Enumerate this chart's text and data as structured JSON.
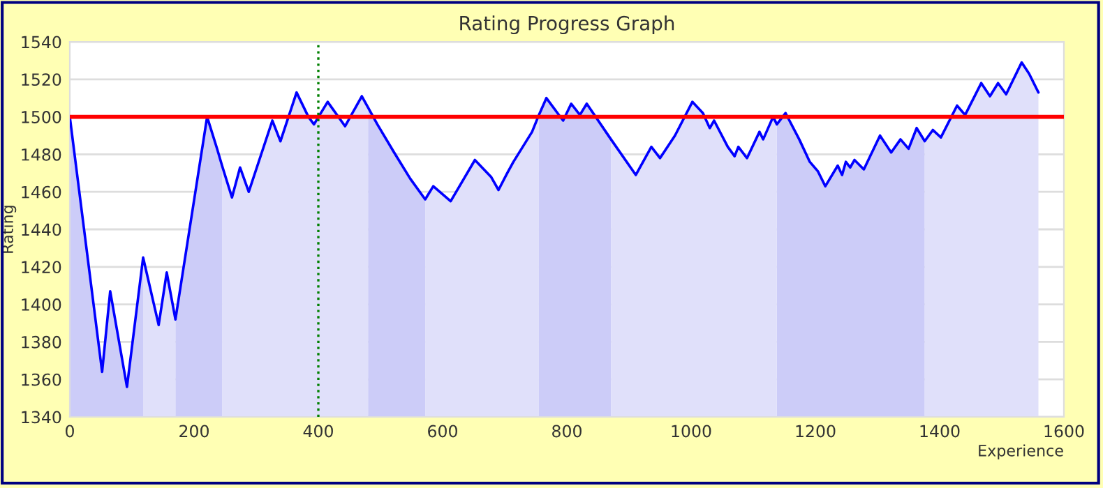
{
  "chart_data": {
    "type": "line",
    "title": "Rating Progress Graph",
    "xlabel": "Experience",
    "ylabel": "Rating",
    "x": [
      0,
      52,
      65,
      92,
      118,
      143,
      156,
      170,
      221,
      237,
      245,
      261,
      274,
      288,
      326,
      339,
      365,
      384,
      393,
      415,
      443,
      470,
      480,
      495,
      522,
      548,
      572,
      585,
      613,
      652,
      678,
      690,
      704,
      714,
      744,
      755,
      767,
      794,
      807,
      821,
      832,
      871,
      911,
      936,
      950,
      974,
      1002,
      1019,
      1030,
      1037,
      1059,
      1070,
      1076,
      1090,
      1110,
      1116,
      1132,
      1138,
      1152,
      1174,
      1191,
      1204,
      1216,
      1236,
      1243,
      1249,
      1256,
      1263,
      1278,
      1304,
      1322,
      1337,
      1350,
      1363,
      1376,
      1389,
      1402,
      1428,
      1441,
      1467,
      1481,
      1494,
      1507,
      1532,
      1544,
      1559
    ],
    "series": [
      {
        "type": "area",
        "color": "#ccccf8",
        "values": [
          1500,
          1364,
          1407,
          1356,
          1425,
          null,
          null,
          1392,
          1500,
          1483,
          1474,
          null,
          null,
          null,
          null,
          null,
          null,
          null,
          null,
          null,
          null,
          null,
          1505,
          1496,
          1481,
          1467,
          1456,
          null,
          null,
          null,
          null,
          null,
          null,
          null,
          null,
          1501,
          1510,
          1498,
          1507,
          1501,
          1507,
          1488,
          null,
          null,
          null,
          null,
          null,
          null,
          null,
          null,
          null,
          null,
          null,
          null,
          null,
          null,
          null,
          1496,
          1502,
          1488,
          1476,
          1471,
          1463,
          1474,
          1469,
          1476,
          1473,
          1477,
          1472,
          1490,
          1481,
          1488,
          1483,
          1494,
          1487,
          null,
          null,
          null,
          null,
          null,
          null,
          null,
          null,
          null,
          null,
          null
        ]
      },
      {
        "type": "area",
        "color": "#e0e0fa",
        "values": [
          null,
          null,
          null,
          null,
          1425,
          1389,
          1417,
          1392,
          null,
          null,
          1474,
          1457,
          1473,
          1460,
          1498,
          1487,
          1513,
          1500,
          1496,
          1508,
          1495,
          1511,
          1505,
          null,
          null,
          null,
          1456,
          1463,
          1455,
          1477,
          1468,
          1461,
          1470,
          1476,
          1492,
          1501,
          null,
          null,
          null,
          null,
          null,
          1488,
          1469,
          1484,
          1478,
          1490,
          1508,
          1502,
          1494,
          1498,
          1484,
          1479,
          1484,
          1478,
          1492,
          1488,
          1500,
          1496,
          null,
          null,
          null,
          null,
          null,
          null,
          null,
          null,
          null,
          null,
          null,
          null,
          null,
          null,
          null,
          null,
          1487,
          1493,
          1489,
          1506,
          1501,
          1518,
          1511,
          1518,
          1512,
          1529,
          1523,
          1513
        ]
      },
      {
        "color": "#0000ff",
        "values": [
          1500,
          1364,
          1407,
          1356,
          1425,
          1389,
          1417,
          1392,
          1500,
          1483,
          1474,
          1457,
          1473,
          1460,
          1498,
          1487,
          1513,
          1500,
          1496,
          1508,
          1495,
          1511,
          1505,
          1496,
          1481,
          1467,
          1456,
          1463,
          1455,
          1477,
          1468,
          1461,
          1470,
          1476,
          1492,
          1501,
          1510,
          1498,
          1507,
          1501,
          1507,
          1488,
          1469,
          1484,
          1478,
          1490,
          1508,
          1502,
          1494,
          1498,
          1484,
          1479,
          1484,
          1478,
          1492,
          1488,
          1500,
          1496,
          1502,
          1488,
          1476,
          1471,
          1463,
          1474,
          1469,
          1476,
          1473,
          1477,
          1472,
          1490,
          1481,
          1488,
          1483,
          1494,
          1487,
          1493,
          1489,
          1506,
          1501,
          1518,
          1511,
          1518,
          1512,
          1529,
          1523,
          1513
        ]
      }
    ],
    "xlim": [
      0,
      1600
    ],
    "xticks": [
      0,
      200,
      400,
      600,
      800,
      1000,
      1200,
      1400,
      1600
    ],
    "ylim": [
      1340,
      1540
    ],
    "yticks": [
      1340,
      1360,
      1380,
      1400,
      1420,
      1440,
      1460,
      1480,
      1500,
      1520,
      1540
    ],
    "ref_lines": [
      {
        "axis": "y",
        "value": 1500,
        "color": "#ff0000",
        "line_style": "solid"
      },
      {
        "axis": "x",
        "value": 400,
        "color": "#008000",
        "line_style": "dotted"
      }
    ],
    "grid": "y",
    "legend": false
  }
}
